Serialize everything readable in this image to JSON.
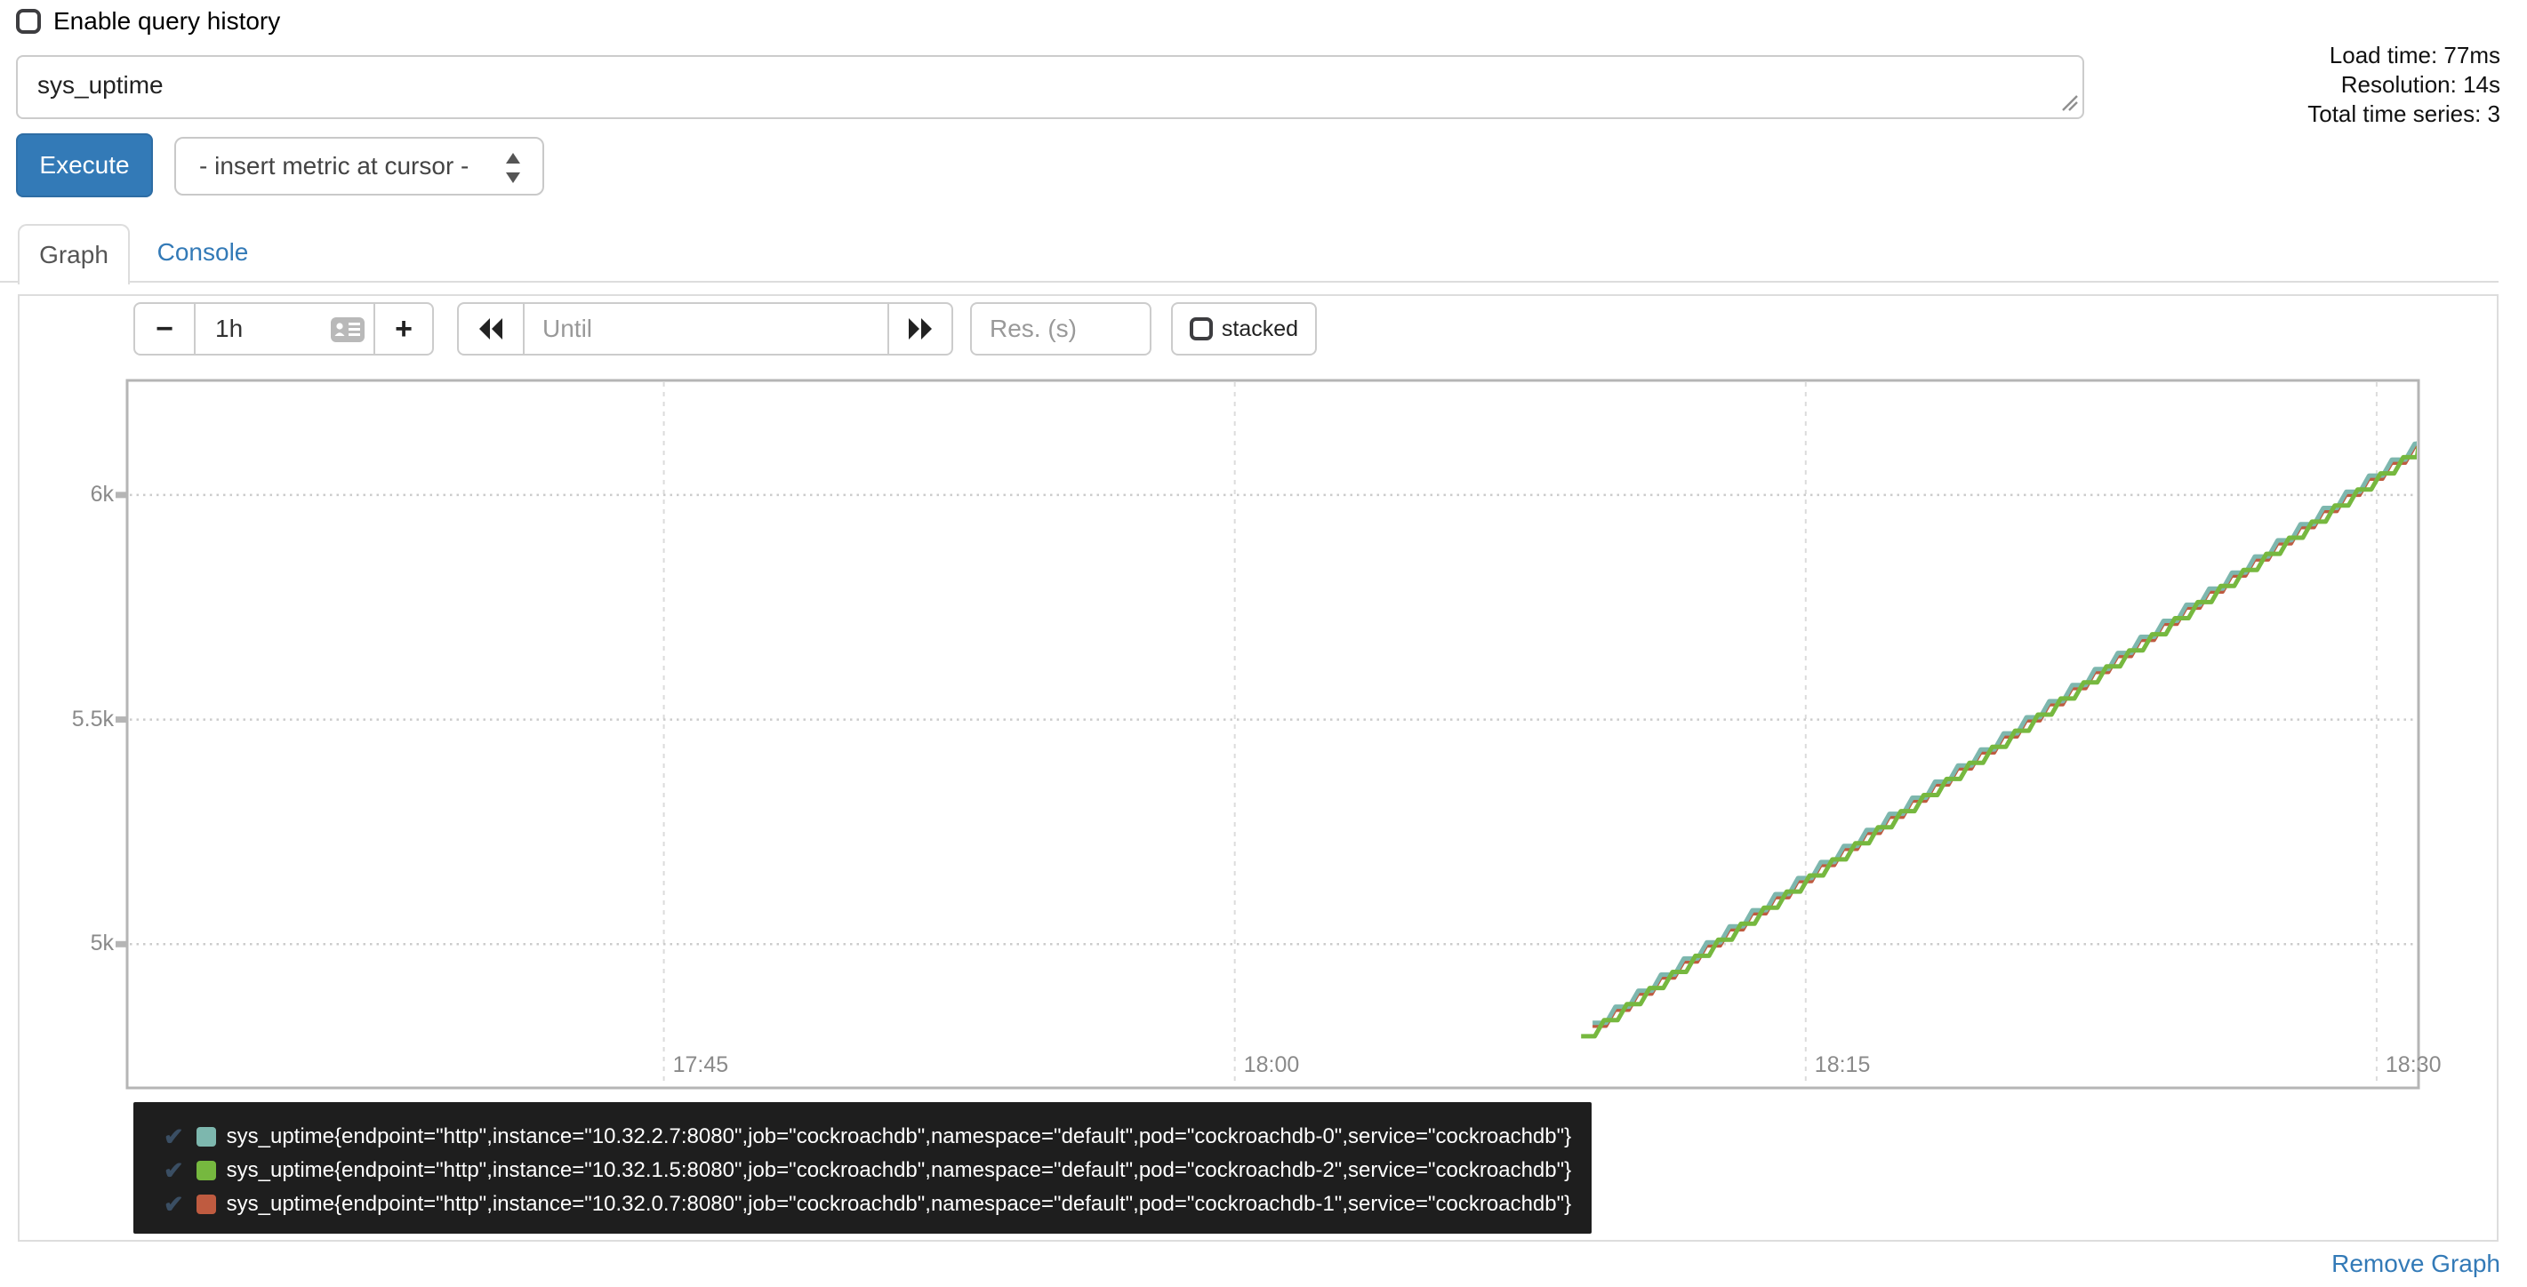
{
  "header": {
    "enable_query_history": "Enable query history",
    "query": {
      "value": "sys_uptime"
    },
    "execute_label": "Execute",
    "insert_metric_value": "- insert metric at cursor -",
    "stats": {
      "load_time": "Load time: 77ms",
      "resolution": "Resolution: 14s",
      "total_series": "Total time series: 3"
    }
  },
  "tabs": {
    "graph": "Graph",
    "console": "Console"
  },
  "controls": {
    "minus": "−",
    "plus": "+",
    "range_value": "1h",
    "until_placeholder": "Until",
    "res_placeholder": "Res. (s)",
    "stacked_label": "stacked"
  },
  "icons": {
    "legend_check": "✔"
  },
  "footer": {
    "remove_graph": "Remove Graph"
  },
  "colors": {
    "accent_blue": "#337ab7",
    "legend_background": "#1e1e1e",
    "plot_border": "#b5b5b5",
    "axis_text": "#8a8a8a"
  },
  "chart_data": {
    "type": "line",
    "line_style": "staircase",
    "grid": true,
    "legend_position": "bottom",
    "x_axis": {
      "tick_labels": [
        "17:45",
        "18:00",
        "18:15",
        "18:30"
      ],
      "tick_minutes_from_1800": [
        -15,
        0,
        15,
        30
      ],
      "window_minutes_from_1800": [
        -29.1,
        31.1
      ]
    },
    "y_axis": {
      "tick_labels": [
        "5k",
        "5.5k",
        "6k"
      ],
      "tick_values": [
        5000,
        5500,
        6000
      ],
      "ylim": [
        4680,
        6255
      ]
    },
    "step_seconds": 36,
    "series": [
      {
        "name": "cockroachdb-0",
        "color": "#7db7ae",
        "stroke_width": 5,
        "z": 2,
        "label": "sys_uptime{endpoint=\"http\",instance=\"10.32.2.7:8080\",job=\"cockroachdb\",namespace=\"default\",pod=\"cockroachdb-0\",service=\"cockroachdb\"}",
        "points": [
          [
            9.4,
            4825
          ],
          [
            12,
            4980
          ],
          [
            15,
            5159
          ],
          [
            18,
            5338
          ],
          [
            21,
            5517
          ],
          [
            24,
            5696
          ],
          [
            27,
            5875
          ],
          [
            30,
            6055
          ],
          [
            31.1,
            6120
          ]
        ]
      },
      {
        "name": "cockroachdb-2",
        "color": "#76b83f",
        "stroke_width": 5,
        "z": 3,
        "label": "sys_uptime{endpoint=\"http\",instance=\"10.32.1.5:8080\",job=\"cockroachdb\",namespace=\"default\",pod=\"cockroachdb-2\",service=\"cockroachdb\"}",
        "points": [
          [
            9.1,
            4795
          ],
          [
            12,
            4968
          ],
          [
            15,
            5147
          ],
          [
            18,
            5326
          ],
          [
            21,
            5505
          ],
          [
            24,
            5684
          ],
          [
            27,
            5863
          ],
          [
            30,
            6042
          ],
          [
            31.1,
            6108
          ]
        ]
      },
      {
        "name": "cockroachdb-1",
        "color": "#bf5b40",
        "stroke_width": 3.5,
        "z": 1,
        "label": "sys_uptime{endpoint=\"http\",instance=\"10.32.0.7:8080\",job=\"cockroachdb\",namespace=\"default\",pod=\"cockroachdb-1\",service=\"cockroachdb\"}",
        "points": [
          [
            9.4,
            4817
          ],
          [
            12,
            4972
          ],
          [
            15,
            5151
          ],
          [
            18,
            5330
          ],
          [
            21,
            5509
          ],
          [
            24,
            5688
          ],
          [
            27,
            5867
          ],
          [
            30,
            6047
          ],
          [
            31.1,
            6112
          ]
        ]
      }
    ]
  }
}
